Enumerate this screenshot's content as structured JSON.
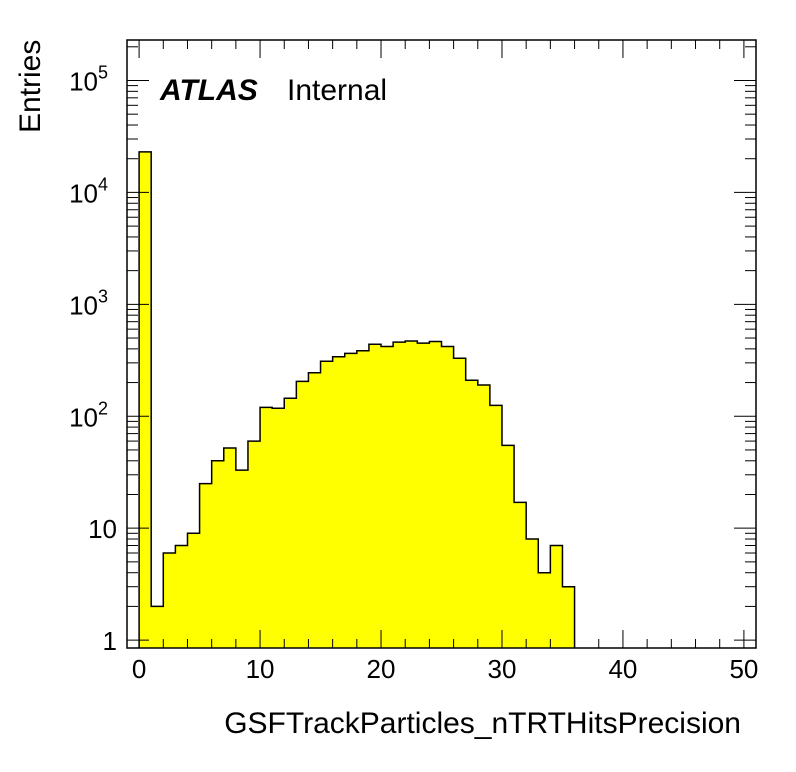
{
  "chart_data": {
    "type": "bar",
    "subtype": "histogram",
    "xlabel": "GSFTrackParticles_nTRTHitsPrecision",
    "ylabel": "Entries",
    "xlim": [
      -1,
      51
    ],
    "ylim": [
      0.85,
      230000
    ],
    "ylog": true,
    "bin_width": 1,
    "bin_lows": [
      0,
      1,
      2,
      3,
      4,
      5,
      6,
      7,
      8,
      9,
      10,
      11,
      12,
      13,
      14,
      15,
      16,
      17,
      18,
      19,
      20,
      21,
      22,
      23,
      24,
      25,
      26,
      27,
      28,
      29,
      30,
      31,
      32,
      33,
      34,
      35
    ],
    "values": [
      23000,
      2,
      6,
      7,
      9,
      25,
      40,
      52,
      33,
      60,
      120,
      118,
      145,
      205,
      245,
      310,
      340,
      365,
      385,
      440,
      420,
      460,
      470,
      450,
      465,
      420,
      330,
      210,
      190,
      125,
      55,
      17,
      8,
      4,
      7,
      3
    ],
    "fill_color": "#ffff00",
    "line_color": "#000000",
    "xticks": [
      "0",
      "10",
      "20",
      "30",
      "40",
      "50"
    ],
    "yticks": [
      {
        "value": 1,
        "base": "1",
        "exp": ""
      },
      {
        "value": 10,
        "base": "10",
        "exp": ""
      },
      {
        "value": 100,
        "base": "10",
        "exp": "2"
      },
      {
        "value": 1000,
        "base": "10",
        "exp": "3"
      },
      {
        "value": 10000,
        "base": "10",
        "exp": "4"
      },
      {
        "value": 100000,
        "base": "10",
        "exp": "5"
      }
    ],
    "annotation": {
      "bold": "ATLAS",
      "normal": "Internal"
    }
  }
}
